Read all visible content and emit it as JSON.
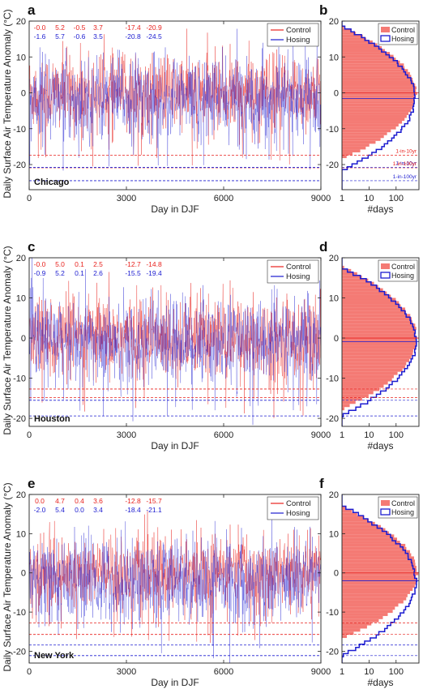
{
  "figure": {
    "ylabel": "Daily Surface Air Temperature Anomaly (°C)",
    "colors": {
      "control": "#e8221e",
      "hosing": "#1c1cd0",
      "control_fill": "#f47a74",
      "axis": "#222222"
    }
  },
  "chart_data": [
    {
      "panel": "a",
      "type": "line",
      "city": "Chicago",
      "xlabel": "Day in DJF",
      "ylabel": "Daily Surface Air Temperature Anomaly (°C)",
      "xlim": [
        0,
        9000
      ],
      "ylim": [
        -27,
        20
      ],
      "xticks": [
        0,
        3000,
        6000,
        9000
      ],
      "yticks": [
        -20,
        -10,
        0,
        10,
        20
      ],
      "legend": {
        "position": "top-right",
        "entries": [
          "Control",
          "Hosing"
        ]
      },
      "stats": {
        "control": [
          "-0.0",
          "5.2",
          "-0.5",
          "3.7",
          "-17.4",
          "-20.9"
        ],
        "hosing": [
          "-1.6",
          "5.7",
          "-0.6",
          "3.5",
          "-20.8",
          "-24.5"
        ]
      },
      "series": [
        {
          "name": "Control",
          "mean": 0.0,
          "std": 5.2,
          "return_10yr": -17.4,
          "return_100yr": -20.9
        },
        {
          "name": "Hosing",
          "mean": -1.6,
          "std": 5.7,
          "return_10yr": -20.8,
          "return_100yr": -24.5
        }
      ]
    },
    {
      "panel": "b",
      "type": "bar",
      "orientation": "horizontal",
      "scale": "log",
      "xlabel": "#days",
      "xticks": [
        "1",
        "10",
        "100"
      ],
      "ylim": [
        -27,
        20
      ],
      "legend": {
        "position": "top-right",
        "entries": [
          "Control",
          "Hosing"
        ]
      },
      "annotations": [
        "1-in-10yr",
        "1-in-10yr",
        "1-in-100yr",
        "1-in-100yr"
      ]
    },
    {
      "panel": "c",
      "type": "line",
      "city": "Houston",
      "xlabel": "Day in DJF",
      "xlim": [
        0,
        9000
      ],
      "ylim": [
        -22,
        20
      ],
      "xticks": [
        0,
        3000,
        6000,
        9000
      ],
      "yticks": [
        -20,
        -10,
        0,
        10,
        20
      ],
      "legend": {
        "position": "top-right",
        "entries": [
          "Control",
          "Hosing"
        ]
      },
      "stats": {
        "control": [
          "-0.0",
          "5.0",
          "0.1",
          "2.5",
          "-12.7",
          "-14.8"
        ],
        "hosing": [
          "-0.9",
          "5.2",
          "0.1",
          "2.6",
          "-15.5",
          "-19.4"
        ]
      },
      "series": [
        {
          "name": "Control",
          "mean": 0.0,
          "std": 5.0,
          "return_10yr": -12.7,
          "return_100yr": -14.8
        },
        {
          "name": "Hosing",
          "mean": -0.9,
          "std": 5.2,
          "return_10yr": -15.5,
          "return_100yr": -19.4
        }
      ]
    },
    {
      "panel": "d",
      "type": "bar",
      "orientation": "horizontal",
      "scale": "log",
      "xlabel": "#days",
      "xticks": [
        "1",
        "10",
        "100"
      ],
      "ylim": [
        -22,
        20
      ],
      "legend": {
        "position": "top-right",
        "entries": [
          "Control",
          "Hosing"
        ]
      }
    },
    {
      "panel": "e",
      "type": "line",
      "city": "New York",
      "xlabel": "Day in DJF",
      "xlim": [
        0,
        9000
      ],
      "ylim": [
        -23,
        20
      ],
      "xticks": [
        0,
        3000,
        6000,
        9000
      ],
      "yticks": [
        -20,
        -10,
        0,
        10,
        20
      ],
      "legend": {
        "position": "top-right",
        "entries": [
          "Control",
          "Hosing"
        ]
      },
      "stats": {
        "control": [
          "0.0",
          "4.7",
          "0.4",
          "3.6",
          "-12.8",
          "-15.7"
        ],
        "hosing": [
          "-2.0",
          "5.4",
          "0.0",
          "3.4",
          "-18.4",
          "-21.1"
        ]
      },
      "series": [
        {
          "name": "Control",
          "mean": 0.0,
          "std": 4.7,
          "return_10yr": -12.8,
          "return_100yr": -15.7
        },
        {
          "name": "Hosing",
          "mean": -2.0,
          "std": 5.4,
          "return_10yr": -18.4,
          "return_100yr": -21.1
        }
      ]
    },
    {
      "panel": "f",
      "type": "bar",
      "orientation": "horizontal",
      "scale": "log",
      "xlabel": "#days",
      "xticks": [
        "1",
        "10",
        "100"
      ],
      "ylim": [
        -23,
        20
      ],
      "legend": {
        "position": "top-right",
        "entries": [
          "Control",
          "Hosing"
        ]
      }
    }
  ]
}
